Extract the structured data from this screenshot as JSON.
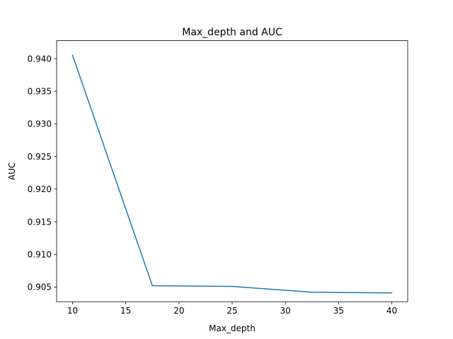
{
  "chart_data": {
    "type": "line",
    "title": "Max_depth and AUC",
    "xlabel": "Max_depth",
    "ylabel": "AUC",
    "xlim": [
      8.5,
      41.5
    ],
    "ylim": [
      0.90275,
      0.94275
    ],
    "x_ticks": [
      10,
      15,
      20,
      25,
      30,
      35,
      40
    ],
    "y_ticks": [
      0.905,
      0.91,
      0.915,
      0.92,
      0.925,
      0.93,
      0.935,
      0.94
    ],
    "x_tick_labels": [
      "10",
      "15",
      "20",
      "25",
      "30",
      "35",
      "40"
    ],
    "y_tick_labels": [
      "0.905",
      "0.910",
      "0.915",
      "0.920",
      "0.925",
      "0.930",
      "0.935",
      "0.940"
    ],
    "grid": false,
    "series": [
      {
        "color": "#1f77b4",
        "x": [
          10,
          17.5,
          25,
          32.5,
          40
        ],
        "y": [
          0.9405,
          0.9052,
          0.9051,
          0.9042,
          0.9041
        ]
      }
    ]
  }
}
